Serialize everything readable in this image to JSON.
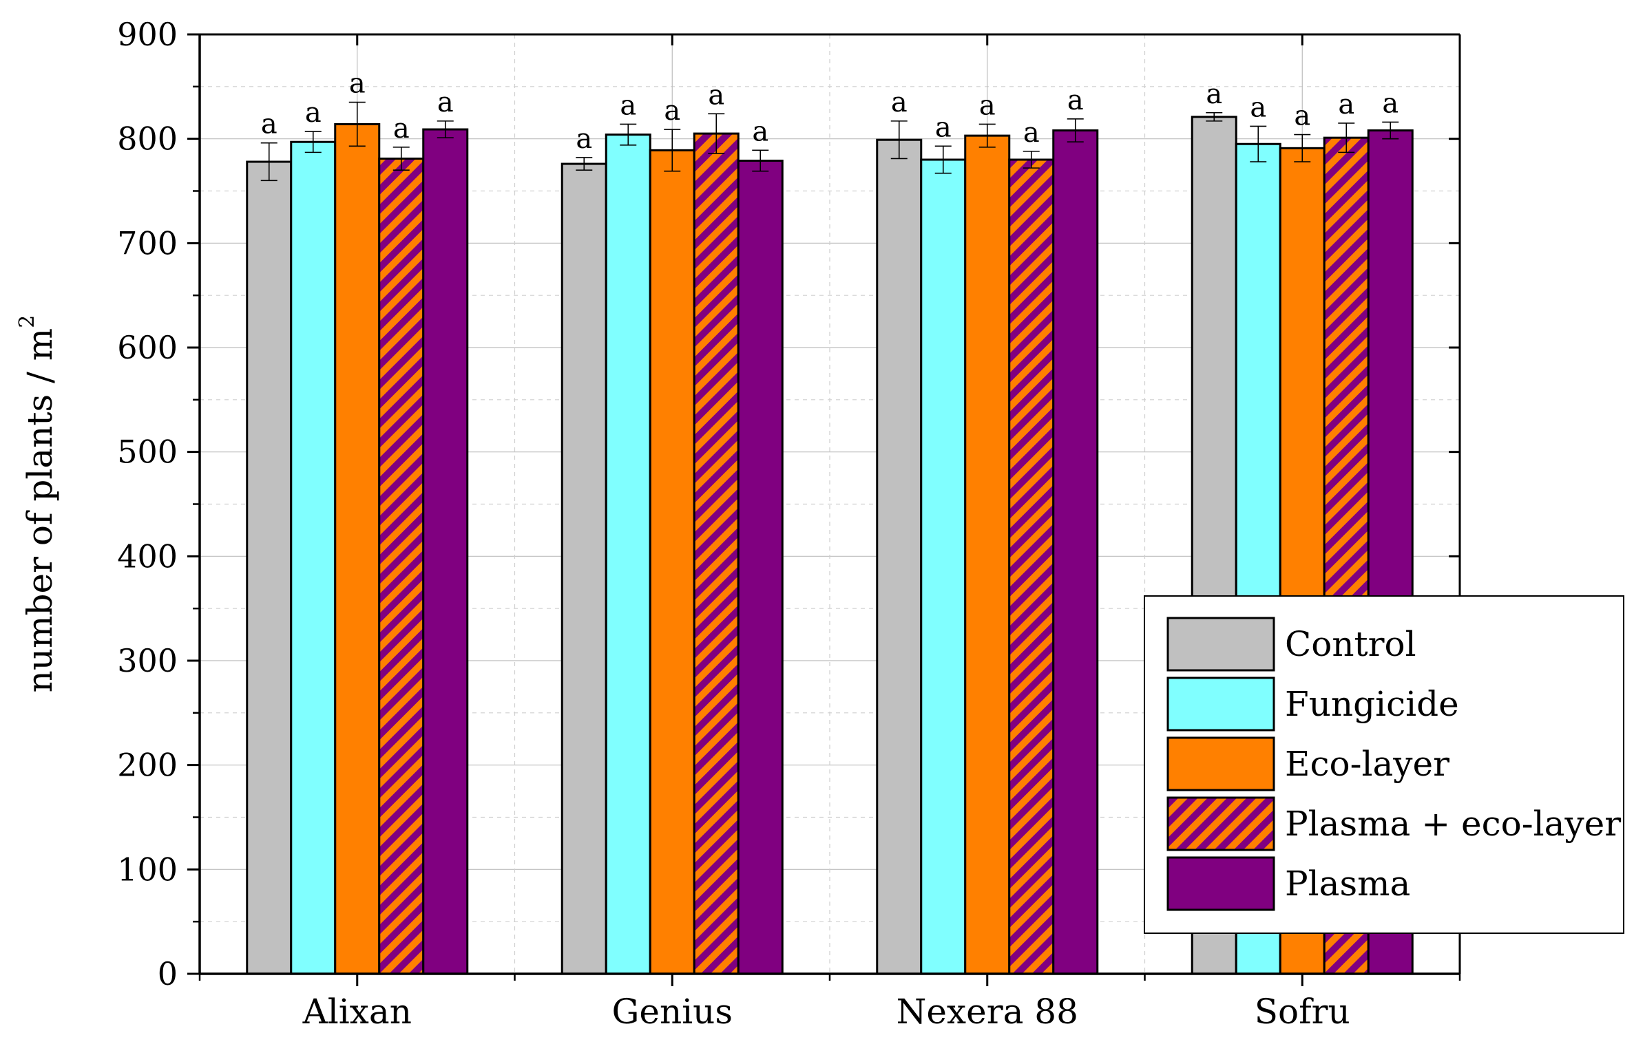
{
  "chart_data": {
    "type": "bar",
    "title": "",
    "xlabel": "",
    "ylabel": "number of plants / m",
    "ylabel_superscript": "2",
    "ylim": [
      0,
      900
    ],
    "yticks": [
      0,
      100,
      200,
      300,
      400,
      500,
      600,
      700,
      800,
      900
    ],
    "grid": true,
    "legend_position": "bottom-right",
    "categories": [
      "Alixan",
      "Genius",
      "Nexera 88",
      "Sofru"
    ],
    "series": [
      {
        "name": "Control",
        "color": "#c0c0c0",
        "pattern": "solid",
        "values": [
          778,
          776,
          799,
          821
        ],
        "errors": [
          18,
          6,
          18,
          4
        ],
        "labels": [
          "a",
          "a",
          "a",
          "a"
        ]
      },
      {
        "name": "Fungicide",
        "color": "#80ffff",
        "pattern": "solid",
        "values": [
          797,
          804,
          780,
          795
        ],
        "errors": [
          10,
          10,
          13,
          17
        ],
        "labels": [
          "a",
          "a",
          "a",
          "a"
        ]
      },
      {
        "name": "Eco-layer",
        "color": "#ff8000",
        "pattern": "solid",
        "values": [
          814,
          789,
          803,
          791
        ],
        "errors": [
          21,
          20,
          11,
          13
        ],
        "labels": [
          "a",
          "a",
          "a",
          "a"
        ]
      },
      {
        "name": "Plasma + eco-layer",
        "color": "#ff8000",
        "pattern": "hatch",
        "hatch_color": "#800080",
        "values": [
          781,
          805,
          780,
          801
        ],
        "errors": [
          11,
          19,
          8,
          14
        ],
        "labels": [
          "a",
          "a",
          "a",
          "a"
        ]
      },
      {
        "name": "Plasma",
        "color": "#800080",
        "pattern": "solid",
        "values": [
          809,
          779,
          808,
          808
        ],
        "errors": [
          8,
          10,
          11,
          8
        ],
        "labels": [
          "a",
          "a",
          "a",
          "a"
        ]
      }
    ]
  }
}
